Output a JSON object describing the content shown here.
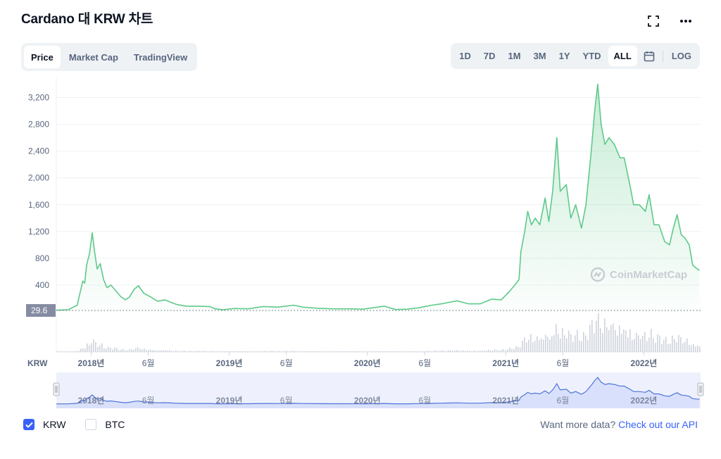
{
  "title": "Cardano 대 KRW 차트",
  "icons": {
    "fullscreen": "fullscreen-icon",
    "more": "more-icon",
    "calendar": "calendar-icon"
  },
  "tabs": [
    {
      "label": "Price",
      "active": true
    },
    {
      "label": "Market Cap",
      "active": false
    },
    {
      "label": "TradingView",
      "active": false
    }
  ],
  "ranges": [
    {
      "label": "1D",
      "active": false
    },
    {
      "label": "7D",
      "active": false
    },
    {
      "label": "1M",
      "active": false
    },
    {
      "label": "3M",
      "active": false
    },
    {
      "label": "1Y",
      "active": false
    },
    {
      "label": "YTD",
      "active": false
    },
    {
      "label": "ALL",
      "active": true
    }
  ],
  "log_label": "LOG",
  "watermark": "CoinMarketCap",
  "legend": [
    {
      "label": "KRW",
      "checked": true
    },
    {
      "label": "BTC",
      "checked": false
    }
  ],
  "api": {
    "prefix": "Want more data?",
    "link": "Check out our API"
  },
  "colors": {
    "line": "#5fc98a",
    "fill_top": "#5fc98a",
    "nav_line": "#4f73d8",
    "nav_bg": "#eef1fd",
    "volume": "#ced3dc",
    "accent": "#3861fb"
  },
  "chart_data": {
    "type": "area",
    "currency_label": "KRW",
    "current_price_label": "29.6",
    "ylim": [
      0,
      3500
    ],
    "yticks": [
      400,
      800,
      1200,
      1600,
      2000,
      2400,
      2800,
      3200
    ],
    "ytick_labels": [
      "400",
      "800",
      "1,200",
      "1,600",
      "2,000",
      "2,400",
      "2,800",
      "3,200"
    ],
    "xlim": [
      "2017-10-01",
      "2022-05-31"
    ],
    "xticks": [
      {
        "date": "2018-01-01",
        "label": "2018년",
        "year": true
      },
      {
        "date": "2018-06-01",
        "label": "6월",
        "year": false
      },
      {
        "date": "2019-01-01",
        "label": "2019년",
        "year": true
      },
      {
        "date": "2019-06-01",
        "label": "6월",
        "year": false
      },
      {
        "date": "2020-01-01",
        "label": "2020년",
        "year": true
      },
      {
        "date": "2020-06-01",
        "label": "6월",
        "year": false
      },
      {
        "date": "2021-01-01",
        "label": "2021년",
        "year": true
      },
      {
        "date": "2021-06-01",
        "label": "6월",
        "year": false
      },
      {
        "date": "2022-01-01",
        "label": "2022년",
        "year": true
      }
    ],
    "series": [
      {
        "points": [
          [
            "2017-10-01",
            25
          ],
          [
            "2017-11-01",
            30
          ],
          [
            "2017-11-25",
            100
          ],
          [
            "2017-12-05",
            340
          ],
          [
            "2017-12-10",
            460
          ],
          [
            "2017-12-15",
            430
          ],
          [
            "2017-12-20",
            700
          ],
          [
            "2017-12-28",
            880
          ],
          [
            "2018-01-04",
            1180
          ],
          [
            "2018-01-10",
            900
          ],
          [
            "2018-01-17",
            640
          ],
          [
            "2018-01-25",
            720
          ],
          [
            "2018-02-03",
            480
          ],
          [
            "2018-02-12",
            360
          ],
          [
            "2018-02-22",
            400
          ],
          [
            "2018-03-05",
            330
          ],
          [
            "2018-03-20",
            230
          ],
          [
            "2018-04-01",
            180
          ],
          [
            "2018-04-12",
            220
          ],
          [
            "2018-04-25",
            340
          ],
          [
            "2018-05-06",
            390
          ],
          [
            "2018-05-20",
            280
          ],
          [
            "2018-06-05",
            230
          ],
          [
            "2018-06-25",
            160
          ],
          [
            "2018-07-15",
            180
          ],
          [
            "2018-08-01",
            140
          ],
          [
            "2018-08-15",
            110
          ],
          [
            "2018-09-10",
            85
          ],
          [
            "2018-10-10",
            85
          ],
          [
            "2018-11-10",
            80
          ],
          [
            "2018-11-25",
            45
          ],
          [
            "2018-12-15",
            30
          ],
          [
            "2019-01-15",
            50
          ],
          [
            "2019-02-20",
            45
          ],
          [
            "2019-04-01",
            80
          ],
          [
            "2019-05-10",
            70
          ],
          [
            "2019-06-20",
            100
          ],
          [
            "2019-07-15",
            70
          ],
          [
            "2019-08-20",
            55
          ],
          [
            "2019-10-01",
            45
          ],
          [
            "2019-11-15",
            45
          ],
          [
            "2019-12-20",
            40
          ],
          [
            "2020-02-15",
            85
          ],
          [
            "2020-03-15",
            35
          ],
          [
            "2020-04-15",
            40
          ],
          [
            "2020-05-15",
            60
          ],
          [
            "2020-06-20",
            100
          ],
          [
            "2020-07-15",
            120
          ],
          [
            "2020-08-25",
            165
          ],
          [
            "2020-09-25",
            120
          ],
          [
            "2020-10-25",
            120
          ],
          [
            "2020-11-25",
            190
          ],
          [
            "2020-12-20",
            180
          ],
          [
            "2021-01-10",
            300
          ],
          [
            "2021-01-25",
            400
          ],
          [
            "2021-02-05",
            480
          ],
          [
            "2021-02-10",
            900
          ],
          [
            "2021-02-20",
            1200
          ],
          [
            "2021-02-28",
            1500
          ],
          [
            "2021-03-10",
            1300
          ],
          [
            "2021-03-20",
            1400
          ],
          [
            "2021-04-01",
            1300
          ],
          [
            "2021-04-15",
            1700
          ],
          [
            "2021-04-25",
            1350
          ],
          [
            "2021-05-05",
            1800
          ],
          [
            "2021-05-16",
            2600
          ],
          [
            "2021-05-25",
            1800
          ],
          [
            "2021-06-10",
            1900
          ],
          [
            "2021-06-22",
            1400
          ],
          [
            "2021-07-05",
            1600
          ],
          [
            "2021-07-20",
            1250
          ],
          [
            "2021-08-01",
            1600
          ],
          [
            "2021-08-15",
            2400
          ],
          [
            "2021-08-24",
            3000
          ],
          [
            "2021-09-01",
            3400
          ],
          [
            "2021-09-10",
            2800
          ],
          [
            "2021-09-20",
            2500
          ],
          [
            "2021-10-01",
            2600
          ],
          [
            "2021-10-15",
            2500
          ],
          [
            "2021-10-30",
            2300
          ],
          [
            "2021-11-10",
            2300
          ],
          [
            "2021-11-25",
            1900
          ],
          [
            "2021-12-05",
            1600
          ],
          [
            "2021-12-20",
            1600
          ],
          [
            "2022-01-05",
            1500
          ],
          [
            "2022-01-15",
            1750
          ],
          [
            "2022-01-28",
            1300
          ],
          [
            "2022-02-10",
            1300
          ],
          [
            "2022-02-25",
            1050
          ],
          [
            "2022-03-10",
            1000
          ],
          [
            "2022-03-20",
            1250
          ],
          [
            "2022-03-30",
            1450
          ],
          [
            "2022-04-10",
            1150
          ],
          [
            "2022-04-20",
            1100
          ],
          [
            "2022-05-01",
            1000
          ],
          [
            "2022-05-10",
            700
          ],
          [
            "2022-05-20",
            650
          ],
          [
            "2022-05-28",
            620
          ]
        ]
      }
    ]
  }
}
